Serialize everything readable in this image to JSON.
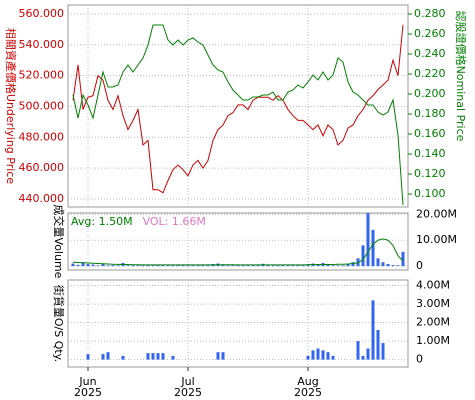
{
  "chart_data": [
    {
      "type": "line",
      "y_axis_side": "left",
      "grid": true,
      "ylabel": "相關資產價格Underlying Price",
      "y2label": "認股證價格Nominal Price",
      "xlim": [
        -1,
        67
      ],
      "xticks": [
        3,
        23,
        47
      ],
      "ylim": [
        434.8,
        565.8
      ],
      "yticks": [
        {
          "value": 440,
          "label": "440.000"
        },
        {
          "value": 460,
          "label": "460.000"
        },
        {
          "value": 480,
          "label": "480.000"
        },
        {
          "value": 500,
          "label": "500.000"
        },
        {
          "value": 520,
          "label": "520.000"
        },
        {
          "value": 540,
          "label": "540.000"
        },
        {
          "value": 560,
          "label": "560.000"
        }
      ],
      "y2lim": [
        0.087,
        0.289
      ],
      "y2ticks": [
        {
          "value": 0.1,
          "label": "0.100"
        },
        {
          "value": 0.12,
          "label": "0.120"
        },
        {
          "value": 0.14,
          "label": "0.140"
        },
        {
          "value": 0.16,
          "label": "0.160"
        },
        {
          "value": 0.18,
          "label": "0.180"
        },
        {
          "value": 0.2,
          "label": "0.200"
        },
        {
          "value": 0.22,
          "label": "0.220"
        },
        {
          "value": 0.24,
          "label": "0.240"
        },
        {
          "value": 0.26,
          "label": "0.260"
        },
        {
          "value": 0.28,
          "label": "0.280"
        }
      ],
      "series": [
        {
          "color": "#cc0000",
          "axis": "y",
          "values": [
            504,
            527,
            498,
            506,
            507,
            520,
            517,
            504,
            498,
            507,
            494,
            485,
            491,
            498,
            475,
            478,
            446,
            446,
            444,
            452,
            459,
            462,
            459,
            455,
            462,
            465,
            460,
            465,
            478,
            485,
            488,
            494,
            496,
            501,
            501,
            498,
            504,
            506,
            506,
            506,
            504,
            507,
            504,
            498,
            494,
            491,
            491,
            488,
            485,
            488,
            481,
            488,
            485,
            475,
            478,
            486,
            488,
            494,
            498,
            504,
            507,
            511,
            514,
            517,
            530,
            520,
            553
          ]
        },
        {
          "color": "#008000",
          "axis": "y2",
          "values": [
            0.199,
            0.176,
            0.199,
            0.189,
            0.176,
            0.199,
            0.222,
            0.207,
            0.207,
            0.209,
            0.222,
            0.229,
            0.222,
            0.229,
            0.236,
            0.249,
            0.269,
            0.269,
            0.269,
            0.254,
            0.249,
            0.254,
            0.249,
            0.254,
            0.256,
            0.252,
            0.249,
            0.239,
            0.229,
            0.224,
            0.222,
            0.212,
            0.204,
            0.199,
            0.194,
            0.194,
            0.197,
            0.197,
            0.199,
            0.199,
            0.202,
            0.194,
            0.194,
            0.202,
            0.204,
            0.209,
            0.206,
            0.212,
            0.219,
            0.214,
            0.222,
            0.214,
            0.219,
            0.236,
            0.232,
            0.212,
            0.202,
            0.199,
            0.194,
            0.189,
            0.189,
            0.182,
            0.179,
            0.182,
            0.194,
            0.159,
            0.089
          ]
        }
      ]
    },
    {
      "type": "bar",
      "y_axis_side": "right",
      "grid": true,
      "ylabel": "成交量Volume",
      "xlim": [
        -1,
        67
      ],
      "xticks": [
        3,
        23,
        47
      ],
      "ylim": [
        -1500000,
        20500000
      ],
      "yticks": [
        0,
        {
          "value": 10000000,
          "label": "10.00M"
        },
        {
          "value": 20000000,
          "label": "20.00M"
        }
      ],
      "series": [
        {
          "name": "Avg: 1.50M",
          "kind": "line",
          "color": "#008000",
          "values": [
            1500000,
            1400000,
            1300000,
            1200000,
            1100000,
            1000000,
            900000,
            800000,
            700000,
            650000,
            600000,
            600000,
            550000,
            550000,
            500000,
            500000,
            500000,
            500000,
            500000,
            500000,
            500000,
            500000,
            500000,
            500000,
            500000,
            500000,
            500000,
            500000,
            500000,
            550000,
            550000,
            550000,
            550000,
            500000,
            500000,
            500000,
            500000,
            500000,
            500000,
            500000,
            500000,
            500000,
            500000,
            500000,
            500000,
            500000,
            500000,
            550000,
            600000,
            600000,
            600000,
            600000,
            600000,
            700000,
            700000,
            800000,
            1000000,
            1300000,
            2500000,
            5500000,
            8500000,
            10000000,
            10500000,
            10000000,
            8000000,
            4000000,
            2000000
          ]
        },
        {
          "name": "VOL: 1.66M",
          "kind": "bar",
          "color": "#3366ee",
          "values": [
            1000000,
            500000,
            1500000,
            800000,
            600000,
            300000,
            900000,
            300000,
            400000,
            300000,
            1200000,
            300000,
            300000,
            300000,
            300000,
            300000,
            300000,
            300000,
            300000,
            300000,
            300000,
            300000,
            300000,
            300000,
            300000,
            300000,
            300000,
            300000,
            800000,
            1000000,
            600000,
            300000,
            300000,
            300000,
            300000,
            300000,
            300000,
            300000,
            900000,
            300000,
            300000,
            300000,
            300000,
            300000,
            300000,
            300000,
            300000,
            700000,
            1000000,
            800000,
            1200000,
            600000,
            300000,
            300000,
            300000,
            1000000,
            1500000,
            3000000,
            8000000,
            20500000,
            14000000,
            3000000,
            1500000,
            800000,
            400000,
            300000,
            5500000
          ]
        }
      ]
    },
    {
      "type": "bar",
      "y_axis_side": "right",
      "grid": true,
      "ylabel": "街貨量O/S Qty.",
      "xlim": [
        -1,
        67
      ],
      "xticks": [
        {
          "value": 3,
          "label": "Jun"
        },
        {
          "value": 23,
          "label": "Jul"
        },
        {
          "value": 47,
          "label": "Aug"
        }
      ],
      "xtick_sublabel": "2025",
      "ylim": [
        -400000,
        4300000
      ],
      "yticks": [
        0,
        {
          "value": 1000000,
          "label": "1.00M"
        },
        {
          "value": 2000000,
          "label": "2.00M"
        },
        {
          "value": 3000000,
          "label": "3.00M"
        },
        {
          "value": 4000000,
          "label": "4.00M"
        }
      ],
      "series": [
        {
          "kind": "bar",
          "color": "#3366ee",
          "values": [
            0,
            0,
            0,
            300000,
            0,
            0,
            300000,
            400000,
            0,
            0,
            200000,
            0,
            0,
            0,
            0,
            350000,
            350000,
            350000,
            350000,
            0,
            200000,
            0,
            0,
            0,
            0,
            0,
            0,
            0,
            0,
            400000,
            400000,
            0,
            0,
            0,
            0,
            0,
            0,
            0,
            0,
            0,
            0,
            0,
            0,
            0,
            0,
            0,
            0,
            200000,
            500000,
            600000,
            500000,
            400000,
            200000,
            0,
            0,
            0,
            0,
            1000000,
            200000,
            600000,
            3200000,
            1600000,
            900000,
            0,
            0,
            0,
            0
          ]
        }
      ]
    }
  ]
}
